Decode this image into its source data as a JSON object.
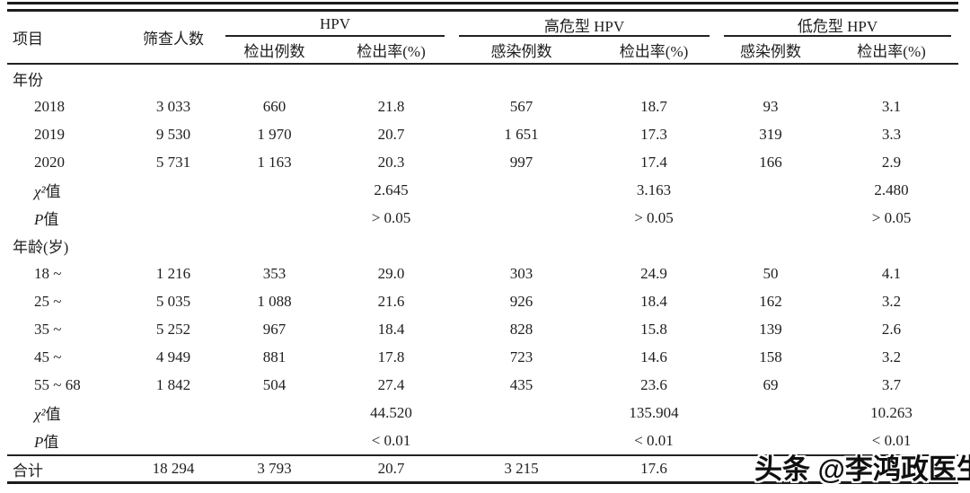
{
  "page": {
    "background": "#ffffff",
    "text_color": "#1e1e1e",
    "rule_color": "#1c1c1c"
  },
  "table": {
    "header": {
      "item": "项目",
      "screened": "筛查人数",
      "groups": [
        {
          "label": "HPV",
          "sub": [
            "检出例数",
            "检出率(%)"
          ]
        },
        {
          "label": "高危型 HPV",
          "sub": [
            "感染例数",
            "检出率(%)"
          ]
        },
        {
          "label": "低危型 HPV",
          "sub": [
            "感染例数",
            "检出率(%)"
          ]
        }
      ]
    },
    "rows": [
      {
        "label": "年份",
        "indent": false,
        "values": [
          "",
          "",
          "",
          "",
          "",
          "",
          ""
        ]
      },
      {
        "label": "2018",
        "indent": true,
        "values": [
          "3 033",
          "660",
          "21.8",
          "567",
          "18.7",
          "93",
          "3.1"
        ]
      },
      {
        "label": "2019",
        "indent": true,
        "values": [
          "9 530",
          "1 970",
          "20.7",
          "1 651",
          "17.3",
          "319",
          "3.3"
        ]
      },
      {
        "label": "2020",
        "indent": true,
        "values": [
          "5 731",
          "1 163",
          "20.3",
          "997",
          "17.4",
          "166",
          "2.9"
        ]
      },
      {
        "prefix": "χ²",
        "label": "值",
        "indent": true,
        "values": [
          "",
          "",
          "2.645",
          "",
          "3.163",
          "",
          "2.480"
        ]
      },
      {
        "prefix": "P",
        "label": "值",
        "indent": true,
        "values": [
          "",
          "",
          "> 0.05",
          "",
          "> 0.05",
          "",
          "> 0.05"
        ]
      },
      {
        "label": "年龄(岁)",
        "indent": false,
        "values": [
          "",
          "",
          "",
          "",
          "",
          "",
          ""
        ]
      },
      {
        "label": "18 ~",
        "indent": true,
        "values": [
          "1 216",
          "353",
          "29.0",
          "303",
          "24.9",
          "50",
          "4.1"
        ]
      },
      {
        "label": "25 ~",
        "indent": true,
        "values": [
          "5 035",
          "1 088",
          "21.6",
          "926",
          "18.4",
          "162",
          "3.2"
        ]
      },
      {
        "label": "35 ~",
        "indent": true,
        "values": [
          "5 252",
          "967",
          "18.4",
          "828",
          "15.8",
          "139",
          "2.6"
        ]
      },
      {
        "label": "45 ~",
        "indent": true,
        "values": [
          "4 949",
          "881",
          "17.8",
          "723",
          "14.6",
          "158",
          "3.2"
        ]
      },
      {
        "label": "55 ~ 68",
        "indent": true,
        "values": [
          "1 842",
          "504",
          "27.4",
          "435",
          "23.6",
          "69",
          "3.7"
        ]
      },
      {
        "prefix": "χ²",
        "label": "值",
        "indent": true,
        "values": [
          "",
          "",
          "44.520",
          "",
          "135.904",
          "",
          "10.263"
        ]
      },
      {
        "prefix": "P",
        "label": "值",
        "indent": true,
        "values": [
          "",
          "",
          "< 0.01",
          "",
          "< 0.01",
          "",
          "< 0.01"
        ]
      },
      {
        "label": "合计",
        "indent": false,
        "total": true,
        "values": [
          "18 294",
          "3 793",
          "20.7",
          "3 215",
          "17.6",
          "",
          ""
        ]
      }
    ]
  },
  "watermark": {
    "text": "头条 @李鸿政医生"
  }
}
